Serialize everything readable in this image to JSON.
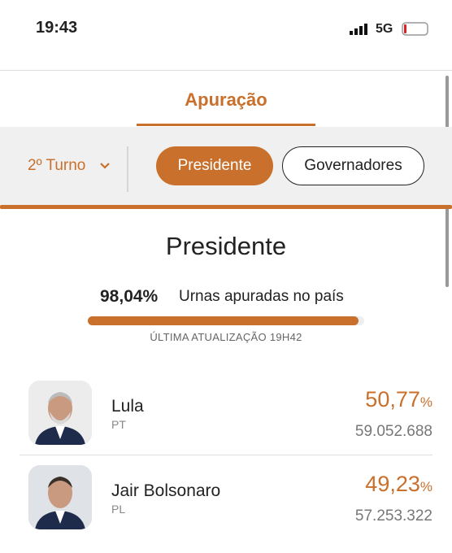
{
  "status_bar": {
    "time": "19:43",
    "network": "5G"
  },
  "tabs": {
    "active": "Apuração"
  },
  "filters": {
    "round": "2º Turno",
    "buttons": [
      "Presidente",
      "Governadores"
    ],
    "selected_button": 0
  },
  "section": {
    "title": "Presidente",
    "progress": {
      "value": 98.04,
      "label": "98,04%",
      "range": [
        0,
        100
      ]
    },
    "progress_caption": "Urnas apuradas no país",
    "last_update": "ÚLTIMA ATUALIZAÇÃO 19H42"
  },
  "candidates": [
    {
      "name": "Lula",
      "party": "PT",
      "percent": "50,77",
      "percent_unit": "%",
      "votes": "59.052.688"
    },
    {
      "name": "Jair Bolsonaro",
      "party": "PL",
      "percent": "49,23",
      "percent_unit": "%",
      "votes": "57.253.322"
    }
  ]
}
